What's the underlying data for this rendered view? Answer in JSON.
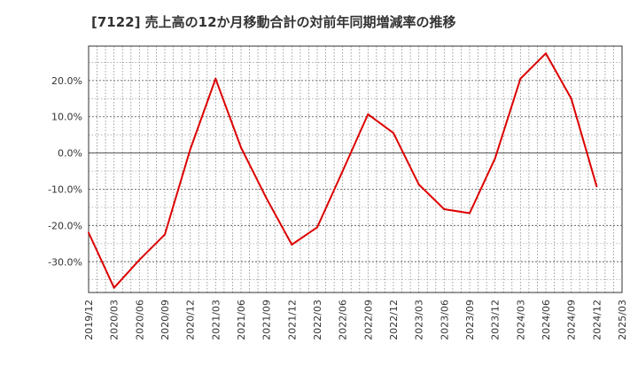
{
  "chart_data": {
    "type": "line",
    "title": "[7122]  売上高の12か月移動合計の対前年同期増減率の推移",
    "xlabel": "",
    "ylabel": "",
    "ylim": [
      -38.5,
      29.5
    ],
    "yticks": [
      20,
      10,
      0,
      -10,
      -20,
      -30
    ],
    "ytick_labels": [
      "20.0%",
      "10.0%",
      "0.0%",
      "-10.0%",
      "-20.0%",
      "-30.0%"
    ],
    "categories": [
      "2019/12",
      "2020/03",
      "2020/06",
      "2020/09",
      "2020/12",
      "2021/03",
      "2021/06",
      "2021/09",
      "2021/12",
      "2022/03",
      "2022/06",
      "2022/09",
      "2022/12",
      "2023/03",
      "2023/06",
      "2023/09",
      "2023/12",
      "2024/03",
      "2024/06",
      "2024/09",
      "2024/12",
      "2025/03"
    ],
    "series": [
      {
        "name": "増減率",
        "color": "#dd0000",
        "values": [
          -22.0,
          -37.2,
          -29.5,
          -22.5,
          1.0,
          20.5,
          1.5,
          -12.5,
          -25.3,
          -20.5,
          -5.0,
          10.7,
          5.5,
          -8.7,
          -15.5,
          -16.6,
          -1.5,
          20.5,
          27.5,
          15.0,
          -9.2,
          null
        ]
      }
    ],
    "grid": true,
    "legend": "none"
  }
}
